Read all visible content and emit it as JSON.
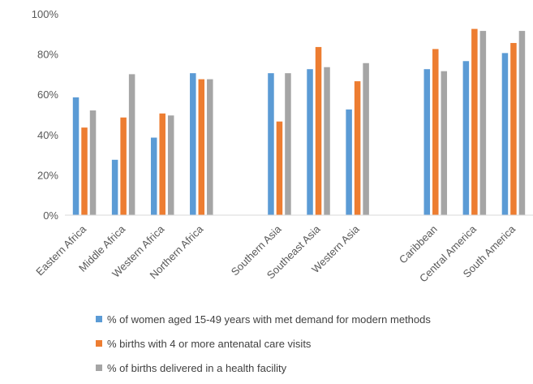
{
  "chart_data": {
    "type": "bar",
    "categories": [
      "Eastern Africa",
      "Middle Africa",
      "Western Africa",
      "Northern Africa",
      "Southern Asia",
      "Southeast Asia",
      "Western Asia",
      "Caribbean",
      "Central America",
      "South America"
    ],
    "groups": [
      [
        0,
        1,
        2,
        3
      ],
      [
        4,
        5,
        6
      ],
      [
        7,
        8,
        9
      ]
    ],
    "series": [
      {
        "name": "% of women aged 15-49 years with met demand for modern methods",
        "color": "#5B9BD5",
        "values": [
          58.5,
          27.5,
          38.5,
          70.5,
          70.5,
          72.5,
          52.5,
          72.5,
          76.5,
          80.5
        ]
      },
      {
        "name": "% births with 4 or more antenatal care visits",
        "color": "#ED7D31",
        "values": [
          43.5,
          48.5,
          50.5,
          67.5,
          46.5,
          83.5,
          66.5,
          82.5,
          92.5,
          85.5
        ]
      },
      {
        "name": "% of births delivered in a health facility",
        "color": "#A5A5A5",
        "values": [
          52,
          70,
          49.5,
          67.5,
          70.5,
          73.5,
          75.5,
          71.5,
          91.5,
          91.5
        ]
      }
    ],
    "yticks": [
      "0%",
      "20%",
      "40%",
      "60%",
      "80%",
      "100%"
    ],
    "ylim": [
      0,
      100
    ],
    "grid": false,
    "legend": "bottom"
  }
}
